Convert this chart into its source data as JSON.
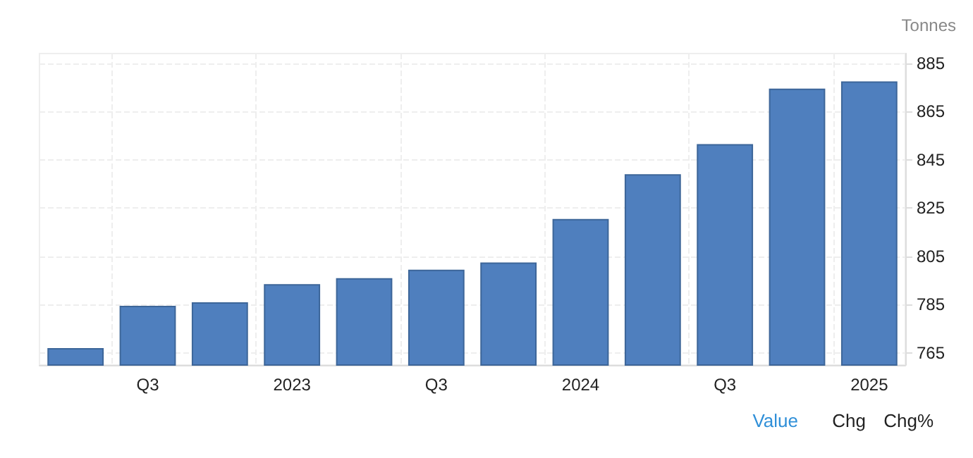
{
  "chart_data": {
    "type": "bar",
    "ylabel": "Tonnes",
    "categories": [
      null,
      "Q3",
      null,
      "2023",
      null,
      "Q3",
      null,
      "2024",
      null,
      "Q3",
      null,
      "2025"
    ],
    "values": [
      767,
      784.5,
      786,
      793.5,
      796,
      799.5,
      802.5,
      820.5,
      839,
      851.5,
      874.5,
      877.5
    ],
    "color": "#4f7fbe",
    "ylim": [
      760,
      889
    ],
    "yticks": [
      765,
      785,
      805,
      825,
      845,
      865,
      885
    ],
    "grid": true,
    "annotations": [
      "Value",
      "Chg",
      "Chg%"
    ]
  }
}
